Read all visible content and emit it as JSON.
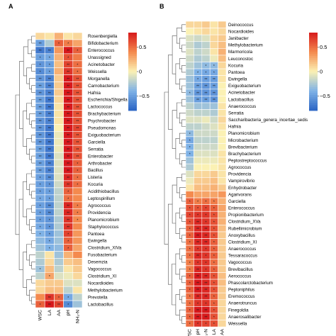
{
  "chart_data": [
    {
      "type": "heatmap",
      "panel": "A",
      "columns": [
        "WSC",
        "LA",
        "AA",
        "pH",
        "NH₃-N"
      ],
      "rows": [
        "Rosenbergiella",
        "Bifidobacterium",
        "Enterococcus",
        "Unassigned",
        "Acinetobacter",
        "Weissella",
        "Morganella",
        "Carnobacterium",
        "Hafnia",
        "Escherichia/Shigella",
        "Lactococcus",
        "Brachybacterium",
        "Psychrobacter",
        "Pseudomonas",
        "Exiguobacterium",
        "Garciella",
        "Serratia",
        "Enterobacter",
        "Arthrobacter",
        "Bacillus",
        "Listeria",
        "Kocuria",
        "Acidithiobacillus",
        "Leptospirillum",
        "Agrococcus",
        "Providencia",
        "Planomicrobium",
        "Staphylococcus",
        "Pantoea",
        "Ewingella",
        "Clostridium_XIVa",
        "Fusobacterium",
        "Desemzia",
        "Vagococcus",
        "Clostridium_XI",
        "Nocardioides",
        "Methylobacterium",
        "Prevotella",
        "Lactobacillus"
      ],
      "values": [
        [
          0.1,
          0.05,
          0.25,
          0.05,
          0.1
        ],
        [
          -0.5,
          -0.25,
          0.55,
          0.45,
          0.3
        ],
        [
          -0.7,
          -0.65,
          0.35,
          0.8,
          0.55
        ],
        [
          -0.5,
          -0.45,
          0.25,
          0.6,
          0.45
        ],
        [
          -0.55,
          -0.5,
          0.2,
          0.65,
          0.5
        ],
        [
          -0.6,
          -0.5,
          0.25,
          0.7,
          0.5
        ],
        [
          -0.55,
          -0.65,
          0.15,
          0.8,
          0.6
        ],
        [
          -0.5,
          -0.65,
          0.15,
          0.8,
          0.6
        ],
        [
          -0.55,
          -0.65,
          0.15,
          0.8,
          0.6
        ],
        [
          -0.5,
          -0.7,
          0.1,
          0.85,
          0.6
        ],
        [
          -0.5,
          -0.7,
          0.05,
          0.85,
          0.6
        ],
        [
          -0.5,
          -0.65,
          0.05,
          0.8,
          0.6
        ],
        [
          -0.55,
          -0.65,
          0.05,
          0.8,
          0.6
        ],
        [
          -0.55,
          -0.7,
          0.0,
          0.85,
          0.65
        ],
        [
          -0.55,
          -0.7,
          -0.05,
          0.85,
          0.6
        ],
        [
          -0.55,
          -0.7,
          -0.05,
          0.85,
          0.6
        ],
        [
          -0.5,
          -0.7,
          -0.05,
          0.85,
          0.6
        ],
        [
          -0.5,
          -0.7,
          -0.1,
          0.85,
          0.6
        ],
        [
          -0.5,
          -0.65,
          -0.1,
          0.8,
          0.55
        ],
        [
          -0.5,
          -0.65,
          -0.1,
          0.8,
          0.55
        ],
        [
          -0.5,
          -0.6,
          -0.1,
          0.75,
          0.5
        ],
        [
          -0.5,
          -0.55,
          -0.15,
          0.7,
          0.5
        ],
        [
          -0.5,
          -0.5,
          -0.2,
          0.55,
          0.4
        ],
        [
          -0.45,
          -0.5,
          -0.2,
          0.5,
          0.4
        ],
        [
          -0.5,
          -0.6,
          -0.2,
          0.75,
          0.45
        ],
        [
          -0.5,
          -0.6,
          -0.2,
          0.75,
          0.45
        ],
        [
          -0.5,
          -0.55,
          -0.25,
          0.7,
          0.4
        ],
        [
          -0.45,
          -0.55,
          -0.25,
          0.7,
          0.4
        ],
        [
          -0.4,
          -0.5,
          -0.3,
          0.65,
          0.35
        ],
        [
          -0.35,
          -0.45,
          -0.3,
          0.55,
          0.35
        ],
        [
          -0.3,
          -0.4,
          -0.35,
          0.55,
          0.3
        ],
        [
          -0.2,
          0.05,
          -0.3,
          0.25,
          0.4
        ],
        [
          -0.25,
          0.1,
          -0.25,
          0.15,
          0.2
        ],
        [
          -0.3,
          0.2,
          -0.2,
          0.05,
          0.15
        ],
        [
          -0.2,
          0.3,
          -0.1,
          -0.05,
          0.1
        ],
        [
          0.1,
          0.15,
          0.15,
          -0.1,
          -0.1
        ],
        [
          0.1,
          0.2,
          0.2,
          -0.2,
          0.05
        ],
        [
          0.4,
          0.7,
          0.55,
          -0.45,
          -0.2
        ],
        [
          0.55,
          0.8,
          0.65,
          -0.6,
          -0.3
        ]
      ],
      "significance": [
        [
          "",
          "",
          "",
          "",
          ""
        ],
        [
          "**",
          "",
          "*",
          "*",
          ""
        ],
        [
          "**",
          "**",
          "",
          "**",
          "*"
        ],
        [
          "*",
          "*",
          "",
          "*",
          ""
        ],
        [
          "*",
          "*",
          "",
          "**",
          "*"
        ],
        [
          "*",
          "*",
          "",
          "**",
          "*"
        ],
        [
          "**",
          "**",
          "",
          "**",
          "**"
        ],
        [
          "**",
          "**",
          "",
          "**",
          "**"
        ],
        [
          "**",
          "**",
          "",
          "**",
          "**"
        ],
        [
          "**",
          "**",
          "",
          "**",
          "**"
        ],
        [
          "**",
          "**",
          "",
          "**",
          "**"
        ],
        [
          "**",
          "**",
          "",
          "**",
          "**"
        ],
        [
          "**",
          "**",
          "",
          "**",
          "**"
        ],
        [
          "**",
          "**",
          "",
          "**",
          "**"
        ],
        [
          "**",
          "**",
          "",
          "**",
          "**"
        ],
        [
          "**",
          "**",
          "",
          "**",
          "**"
        ],
        [
          "**",
          "**",
          "",
          "**",
          "**"
        ],
        [
          "**",
          "**",
          "",
          "**",
          "**"
        ],
        [
          "**",
          "**",
          "",
          "**",
          "*"
        ],
        [
          "**",
          "**",
          "",
          "**",
          "*"
        ],
        [
          "*",
          "**",
          "",
          "**",
          "*"
        ],
        [
          "*",
          "*",
          "",
          "**",
          "*"
        ],
        [
          "*",
          "*",
          "",
          "*",
          ""
        ],
        [
          "*",
          "*",
          "",
          "*",
          ""
        ],
        [
          "*",
          "**",
          "",
          "**",
          "*"
        ],
        [
          "*",
          "**",
          "",
          "**",
          "*"
        ],
        [
          "*",
          "*",
          "",
          "**",
          "*"
        ],
        [
          "*",
          "*",
          "",
          "**",
          ""
        ],
        [
          "*",
          "*",
          "",
          "*",
          ""
        ],
        [
          "",
          "*",
          "",
          "*",
          ""
        ],
        [
          "",
          "*",
          "",
          "*",
          ""
        ],
        [
          "",
          "",
          "",
          "",
          ""
        ],
        [
          "",
          "",
          "",
          "",
          ""
        ],
        [
          "*",
          "",
          "",
          "",
          ""
        ],
        [
          "",
          "*",
          "",
          "",
          ""
        ],
        [
          "",
          "",
          "",
          "",
          ""
        ],
        [
          "",
          "",
          "",
          "",
          ""
        ],
        [
          "",
          "**",
          "*",
          "*",
          ""
        ],
        [
          "*",
          "**",
          "**",
          "*",
          ""
        ]
      ],
      "legend_ticks": [
        "0.5",
        "0",
        "−0.5"
      ],
      "scale": [
        -0.8,
        0.8
      ]
    },
    {
      "type": "heatmap",
      "panel": "B",
      "columns": [
        "WSC",
        "pH",
        "NH₃-N",
        "LA",
        "AA"
      ],
      "rows": [
        "Deinococcus",
        "Nocardioides",
        "Janibacter",
        "Methylobacterium",
        "Marmoricola",
        "Leuconostoc",
        "Kocuria",
        "Pantoea",
        "Ewingella",
        "Exiguobacterium",
        "Acinetobacter",
        "Lactobacillus",
        "Anaerococcus",
        "Serratia",
        "Saccharibacteria_genera_incertae_sedis",
        "Hafnia",
        "Planomicrobium",
        "Microbacterium",
        "Brevibacterium",
        "Brachybacterium",
        "Peptostreptococcus",
        "Agrococcus",
        "Providencia",
        "Vampirovibrio",
        "Enhydrobacter",
        "Agarivorans",
        "Garciella",
        "Enterococcus",
        "Propionibacterium",
        "Clostridium_XVa",
        "Rubellimicrobium",
        "Anoxybacillus",
        "Clostridium_XI",
        "Anaerococcus",
        "Tessaracoccus",
        "Vagococcus",
        "Brevibacillus",
        "Aerococcus",
        "Phascolarctobacterium",
        "Peptoniphilus",
        "Eremococcus",
        "Anaerotruncus",
        "Finegoldia",
        "Anaerosalibacter",
        "Weissella"
      ],
      "values": [
        [
          0.1,
          0.1,
          0.15,
          0.05,
          0.15
        ],
        [
          0.0,
          0.05,
          0.1,
          0.05,
          0.1
        ],
        [
          -0.1,
          -0.15,
          -0.1,
          0.1,
          0.15
        ],
        [
          -0.15,
          -0.25,
          -0.2,
          0.1,
          0.2
        ],
        [
          -0.1,
          -0.2,
          -0.15,
          0.05,
          0.25
        ],
        [
          -0.15,
          -0.25,
          -0.2,
          -0.05,
          0.2
        ],
        [
          -0.2,
          -0.3,
          -0.35,
          -0.35,
          0.1
        ],
        [
          -0.25,
          -0.4,
          -0.45,
          -0.45,
          0.05
        ],
        [
          -0.3,
          -0.45,
          -0.5,
          -0.5,
          0.05
        ],
        [
          -0.3,
          -0.5,
          -0.55,
          -0.5,
          0.0
        ],
        [
          -0.35,
          -0.55,
          -0.55,
          -0.55,
          0.0
        ],
        [
          -0.3,
          -0.5,
          -0.5,
          -0.55,
          0.0
        ],
        [
          -0.2,
          -0.3,
          -0.3,
          -0.3,
          0.05
        ],
        [
          -0.15,
          -0.2,
          -0.2,
          -0.25,
          0.05
        ],
        [
          -0.1,
          -0.1,
          -0.05,
          -0.15,
          0.1
        ],
        [
          -0.2,
          -0.2,
          -0.15,
          -0.1,
          0.05
        ],
        [
          -0.35,
          -0.15,
          -0.15,
          -0.15,
          0.0
        ],
        [
          -0.45,
          -0.2,
          -0.2,
          -0.2,
          0.0
        ],
        [
          -0.4,
          -0.15,
          -0.15,
          -0.15,
          0.0
        ],
        [
          -0.4,
          -0.1,
          -0.1,
          -0.1,
          0.05
        ],
        [
          -0.3,
          -0.05,
          -0.05,
          -0.05,
          0.05
        ],
        [
          -0.25,
          0.0,
          0.0,
          0.0,
          0.05
        ],
        [
          -0.1,
          0.1,
          0.1,
          0.15,
          0.05
        ],
        [
          -0.05,
          0.15,
          0.15,
          0.2,
          0.05
        ],
        [
          0.05,
          0.2,
          0.2,
          0.25,
          0.15
        ],
        [
          0.4,
          0.3,
          0.3,
          0.3,
          0.35
        ],
        [
          0.55,
          0.45,
          0.5,
          0.45,
          0.25
        ],
        [
          0.6,
          0.6,
          0.65,
          0.55,
          0.3
        ],
        [
          0.65,
          0.7,
          0.7,
          0.6,
          0.25
        ],
        [
          0.6,
          0.75,
          0.7,
          0.6,
          0.25
        ],
        [
          0.55,
          0.75,
          0.75,
          0.6,
          0.2
        ],
        [
          0.55,
          0.8,
          0.75,
          0.6,
          0.15
        ],
        [
          0.5,
          0.75,
          0.75,
          0.55,
          0.15
        ],
        [
          0.5,
          0.7,
          0.7,
          0.55,
          0.15
        ],
        [
          0.5,
          0.75,
          0.7,
          0.55,
          0.15
        ],
        [
          0.45,
          0.7,
          0.7,
          0.5,
          0.15
        ],
        [
          0.45,
          0.75,
          0.7,
          0.55,
          0.15
        ],
        [
          0.55,
          0.8,
          0.75,
          0.6,
          0.2
        ],
        [
          0.55,
          0.8,
          0.75,
          0.6,
          0.2
        ],
        [
          0.55,
          0.8,
          0.75,
          0.6,
          0.15
        ],
        [
          0.5,
          0.75,
          0.75,
          0.55,
          0.15
        ],
        [
          0.5,
          0.7,
          0.7,
          0.55,
          0.1
        ],
        [
          0.55,
          0.8,
          0.8,
          0.6,
          0.1
        ],
        [
          0.55,
          0.8,
          0.8,
          0.6,
          0.1
        ],
        [
          0.5,
          0.7,
          0.65,
          0.6,
          0.1
        ]
      ],
      "significance": [
        [
          "",
          "",
          "",
          "",
          ""
        ],
        [
          "",
          "",
          "",
          "",
          ""
        ],
        [
          "",
          "",
          "",
          "",
          ""
        ],
        [
          "",
          "",
          "",
          "",
          ""
        ],
        [
          "",
          "",
          "",
          "",
          ""
        ],
        [
          "",
          "",
          "",
          "",
          ""
        ],
        [
          "",
          "",
          "*",
          "*",
          ""
        ],
        [
          "",
          "*",
          "*",
          "*",
          ""
        ],
        [
          "",
          "*",
          "**",
          "**",
          ""
        ],
        [
          "",
          "**",
          "**",
          "**",
          ""
        ],
        [
          "*",
          "**",
          "**",
          "**",
          ""
        ],
        [
          "",
          "**",
          "**",
          "**",
          ""
        ],
        [
          "",
          "",
          "",
          "",
          ""
        ],
        [
          "",
          "",
          "",
          "",
          ""
        ],
        [
          "",
          "",
          "",
          "",
          ""
        ],
        [
          "",
          "",
          "",
          "",
          ""
        ],
        [
          "*",
          "",
          "",
          "",
          ""
        ],
        [
          "*",
          "",
          "",
          "",
          ""
        ],
        [
          "*",
          "",
          "",
          "",
          ""
        ],
        [
          "*",
          "",
          "",
          "",
          ""
        ],
        [
          "",
          "",
          "",
          "",
          ""
        ],
        [
          "",
          "",
          "",
          "",
          ""
        ],
        [
          "",
          "",
          "",
          "",
          ""
        ],
        [
          "",
          "",
          "",
          "",
          ""
        ],
        [
          "",
          "",
          "",
          "",
          ""
        ],
        [
          "",
          "",
          "",
          "",
          ""
        ],
        [
          "*",
          "*",
          "*",
          "*",
          ""
        ],
        [
          "*",
          "*",
          "*",
          "*",
          ""
        ],
        [
          "*",
          "*",
          "*",
          "*",
          ""
        ],
        [
          "*",
          "**",
          "*",
          "*",
          ""
        ],
        [
          "*",
          "**",
          "**",
          "*",
          ""
        ],
        [
          "*",
          "**",
          "**",
          "*",
          ""
        ],
        [
          "*",
          "**",
          "**",
          "*",
          ""
        ],
        [
          "*",
          "*",
          "*",
          "*",
          ""
        ],
        [
          "*",
          "**",
          "*",
          "*",
          ""
        ],
        [
          "*",
          "*",
          "*",
          "*",
          ""
        ],
        [
          "*",
          "**",
          "*",
          "*",
          ""
        ],
        [
          "*",
          "**",
          "**",
          "*",
          ""
        ],
        [
          "*",
          "**",
          "**",
          "*",
          ""
        ],
        [
          "*",
          "**",
          "**",
          "*",
          ""
        ],
        [
          "*",
          "**",
          "**",
          "*",
          ""
        ],
        [
          "*",
          "*",
          "*",
          "*",
          ""
        ],
        [
          "*",
          "**",
          "**",
          "*",
          ""
        ],
        [
          "*",
          "**",
          "**",
          "*",
          ""
        ],
        [
          "*",
          "*",
          "*",
          "*",
          ""
        ]
      ],
      "legend_ticks": [
        "0.5",
        "0",
        "−0.5"
      ],
      "scale": [
        -0.8,
        0.8
      ]
    }
  ],
  "colors": {
    "neg": "#2b65c4",
    "mid_neg": "#7fb2e6",
    "zero": "#fbf1b4",
    "mid_pos": "#f48a4e",
    "pos": "#d7191c",
    "grid": "#ffffff",
    "dendrogram": "#555555"
  }
}
